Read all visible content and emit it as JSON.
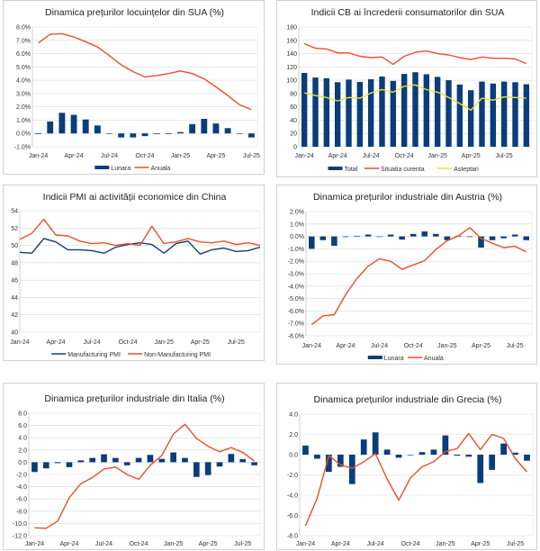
{
  "colors": {
    "bar": "#0a3d7a",
    "red": "#e8502a",
    "navy_line": "#123d6b",
    "yellow": "#e8e040",
    "grid": "#d9d9d9"
  },
  "chart_data": [
    {
      "id": "us-house-prices",
      "type": "bar",
      "title": "Dinamica prețurilor locuințelor din SUA (%)",
      "categories": [
        "Jan-24",
        "Feb-24",
        "Mar-24",
        "Apr-24",
        "May-24",
        "Jun-24",
        "Jul-24",
        "Aug-24",
        "Sep-24",
        "Oct-24",
        "Nov-24",
        "Dec-24",
        "Jan-25",
        "Feb-25",
        "Mar-25",
        "Apr-25",
        "May-25",
        "Jun-25",
        "Jul-25"
      ],
      "x_tick_labels": [
        "Jan-24",
        "Apr-24",
        "Jul-24",
        "Oct-24",
        "Jan-25",
        "Apr-25",
        "Jul-25"
      ],
      "ylim": [
        -1,
        8
      ],
      "y_ticks": [
        -1,
        0,
        1,
        2,
        3,
        4,
        5,
        6,
        7,
        8
      ],
      "y_tick_labels": [
        "-1.0%",
        "0.0%",
        "1.0%",
        "2.0%",
        "3.0%",
        "4.0%",
        "5.0%",
        "6.0%",
        "7.0%",
        "8.0%"
      ],
      "grid": true,
      "legend_position": "bottom",
      "series": [
        {
          "name": "Lunara",
          "kind": "bar",
          "color": "#0a3d7a",
          "values": [
            -0.05,
            0.9,
            1.55,
            1.4,
            1.05,
            0.6,
            0.0,
            -0.3,
            -0.3,
            -0.2,
            -0.05,
            -0.05,
            0.1,
            0.7,
            1.1,
            0.75,
            0.4,
            0.0,
            -0.3
          ]
        },
        {
          "name": "Anuala",
          "kind": "line",
          "color": "#e8502a",
          "values": [
            6.8,
            7.45,
            7.5,
            7.25,
            6.9,
            6.5,
            5.85,
            5.15,
            4.65,
            4.25,
            4.35,
            4.5,
            4.7,
            4.5,
            4.1,
            3.5,
            2.85,
            2.15,
            1.8
          ]
        }
      ]
    },
    {
      "id": "us-cb-confidence",
      "type": "bar",
      "title": "Indicii CB ai încrederii consumatorilor din SUA",
      "categories": [
        "Jan-24",
        "Feb-24",
        "Mar-24",
        "Apr-24",
        "May-24",
        "Jun-24",
        "Jul-24",
        "Aug-24",
        "Sep-24",
        "Oct-24",
        "Nov-24",
        "Dec-24",
        "Jan-25",
        "Feb-25",
        "Mar-25",
        "Apr-25",
        "May-25",
        "Jun-25",
        "Jul-25",
        "Aug-25",
        "Sep-25"
      ],
      "x_tick_labels": [
        "Jan-24",
        "Apr-24",
        "Jul-24",
        "Oct-24",
        "Jan-25",
        "Apr-25",
        "Jul-25"
      ],
      "ylim": [
        0,
        180
      ],
      "y_ticks": [
        0,
        20,
        40,
        60,
        80,
        100,
        120,
        140,
        160,
        180
      ],
      "y_tick_labels": [
        "0",
        "20",
        "40",
        "60",
        "80",
        "100",
        "120",
        "140",
        "160",
        "180"
      ],
      "grid": true,
      "legend_position": "bottom",
      "series": [
        {
          "name": "Total",
          "kind": "bar",
          "color": "#0a3d7a",
          "values": [
            111,
            104,
            103,
            97,
            101,
            97.5,
            101.5,
            105.5,
            99,
            109.5,
            112,
            109,
            105,
            100,
            93.5,
            85,
            98,
            95,
            98,
            97,
            94
          ]
        },
        {
          "name": "Situatia curenta",
          "kind": "line",
          "color": "#e8502a",
          "values": [
            155,
            148,
            147,
            141,
            141,
            136,
            134,
            135,
            124,
            136,
            142,
            144,
            140,
            138,
            134,
            131,
            135,
            133,
            133,
            132,
            125
          ]
        },
        {
          "name": "Asteptari",
          "kind": "line",
          "color": "#e8e040",
          "values": [
            81,
            77,
            74,
            69,
            74,
            73,
            81,
            86,
            82,
            91,
            93,
            86,
            82,
            74,
            65,
            55,
            73,
            70,
            75,
            74,
            73
          ]
        }
      ]
    },
    {
      "id": "china-pmi",
      "type": "line",
      "title": "Indicii PMI ai activității economice din China",
      "categories": [
        "Jan-24",
        "Feb-24",
        "Mar-24",
        "Apr-24",
        "May-24",
        "Jun-24",
        "Jul-24",
        "Aug-24",
        "Sep-24",
        "Oct-24",
        "Nov-24",
        "Dec-24",
        "Jan-25",
        "Feb-25",
        "Mar-25",
        "Apr-25",
        "May-25",
        "Jun-25",
        "Jul-25",
        "Aug-25",
        "Sep-25"
      ],
      "x_tick_labels": [
        "Jan-24",
        "Apr-24",
        "Jul-24",
        "Oct-24",
        "Jan-25",
        "Apr-25",
        "Jul-25"
      ],
      "ylim": [
        40,
        54
      ],
      "y_ticks": [
        40,
        42,
        44,
        46,
        48,
        50,
        52,
        54
      ],
      "y_tick_labels": [
        "40",
        "42",
        "44",
        "46",
        "48",
        "50",
        "52",
        "54"
      ],
      "grid": true,
      "legend_position": "bottom",
      "series": [
        {
          "name": "Manufacturing PMI",
          "kind": "line",
          "color": "#123d6b",
          "values": [
            49.2,
            49.1,
            50.8,
            50.4,
            49.5,
            49.5,
            49.4,
            49.1,
            49.8,
            50.1,
            50.3,
            50.1,
            49.1,
            50.2,
            50.5,
            49.0,
            49.5,
            49.7,
            49.3,
            49.4,
            49.8
          ]
        },
        {
          "name": "Non-Manufacturing PMI",
          "kind": "line",
          "color": "#e8502a",
          "values": [
            50.7,
            51.4,
            53.0,
            51.2,
            51.1,
            50.5,
            50.2,
            50.3,
            50.0,
            50.2,
            50.0,
            52.2,
            50.2,
            50.4,
            50.8,
            50.4,
            50.3,
            50.5,
            50.1,
            50.3,
            50.0
          ]
        }
      ]
    },
    {
      "id": "austria-ppi",
      "type": "bar",
      "title": "Dinamica prețurilor industriale din Austria (%)",
      "categories": [
        "Jan-24",
        "Feb-24",
        "Mar-24",
        "Apr-24",
        "May-24",
        "Jun-24",
        "Jul-24",
        "Aug-24",
        "Sep-24",
        "Oct-24",
        "Nov-24",
        "Dec-24",
        "Jan-25",
        "Feb-25",
        "Mar-25",
        "Apr-25",
        "May-25",
        "Jun-25",
        "Jul-25",
        "Aug-25"
      ],
      "x_tick_labels": [
        "Jan-24",
        "Apr-24",
        "Jul-24",
        "Oct-24",
        "Jan-25",
        "Apr-25",
        "Jul-25"
      ],
      "ylim": [
        -8,
        2
      ],
      "y_ticks": [
        -8,
        -7,
        -6,
        -5,
        -4,
        -3,
        -2,
        -1,
        0,
        1,
        2
      ],
      "y_tick_labels": [
        "-8.0%",
        "-7.0%",
        "-6.0%",
        "-5.0%",
        "-4.0%",
        "-3.0%",
        "-2.0%",
        "-1.0%",
        "0.0%",
        "1.0%",
        "2.0%"
      ],
      "grid": true,
      "legend_position": "bottom",
      "series": [
        {
          "name": "Lunara",
          "kind": "bar",
          "color": "#0a3d7a",
          "values": [
            -1.0,
            -0.3,
            -0.75,
            -0.05,
            0.05,
            0.15,
            0.0,
            0.15,
            -0.25,
            0.2,
            0.4,
            0.2,
            -0.3,
            0.05,
            -0.05,
            -0.9,
            -0.3,
            -0.15,
            0.15,
            -0.3
          ]
        },
        {
          "name": "Anuala",
          "kind": "line",
          "color": "#e8502a",
          "values": [
            -7.1,
            -6.4,
            -6.3,
            -4.7,
            -3.4,
            -2.4,
            -1.8,
            -2.0,
            -2.65,
            -2.3,
            -1.95,
            -1.05,
            -0.35,
            0.05,
            0.7,
            -0.15,
            -0.55,
            -0.9,
            -0.8,
            -1.25
          ]
        }
      ]
    },
    {
      "id": "italy-ppi",
      "type": "bar",
      "title": "Dinamica prețurilor industriale din Italia (%)",
      "categories": [
        "Jan-24",
        "Feb-24",
        "Mar-24",
        "Apr-24",
        "May-24",
        "Jun-24",
        "Jul-24",
        "Aug-24",
        "Sep-24",
        "Oct-24",
        "Nov-24",
        "Dec-24",
        "Jan-25",
        "Feb-25",
        "Mar-25",
        "Apr-25",
        "May-25",
        "Jun-25",
        "Jul-25",
        "Aug-25"
      ],
      "x_tick_labels": [
        "Jan-24",
        "Apr-24",
        "Jul-24",
        "Oct-24",
        "Jan-25",
        "Apr-25",
        "Jul-25"
      ],
      "ylim": [
        -12,
        8
      ],
      "y_ticks": [
        -12,
        -10,
        -8,
        -6,
        -4,
        -2,
        0,
        2,
        4,
        6,
        8
      ],
      "y_tick_labels": [
        "-12.0",
        "-10.0",
        "-8.0",
        "-6.0",
        "-4.0",
        "-2.0",
        "0.0",
        "2.0",
        "4.0",
        "6.0",
        "8.0"
      ],
      "grid": true,
      "legend_position": "bottom",
      "series": [
        {
          "name": "Lunara",
          "kind": "bar",
          "color": "#0a3d7a",
          "values": [
            -1.6,
            -1.0,
            -0.15,
            -0.8,
            0.3,
            0.7,
            1.3,
            0.7,
            -0.5,
            0.7,
            1.2,
            0.55,
            1.6,
            0.7,
            -2.4,
            -2.1,
            -0.7,
            1.35,
            0.5,
            -0.5
          ]
        },
        {
          "name": "Anuala",
          "kind": "line",
          "color": "#e8502a",
          "values": [
            -10.7,
            -10.8,
            -9.6,
            -5.8,
            -3.5,
            -2.5,
            -1.1,
            -0.8,
            -2.0,
            -2.8,
            -0.5,
            1.1,
            4.6,
            6.2,
            3.9,
            2.6,
            1.7,
            2.4,
            1.6,
            0.2
          ]
        }
      ]
    },
    {
      "id": "greece-ppi",
      "type": "bar",
      "title": "Dinamica prețurilor industriale din Grecia (%)",
      "categories": [
        "Jan-24",
        "Feb-24",
        "Mar-24",
        "Apr-24",
        "May-24",
        "Jun-24",
        "Jul-24",
        "Aug-24",
        "Sep-24",
        "Oct-24",
        "Nov-24",
        "Dec-24",
        "Jan-25",
        "Feb-25",
        "Mar-25",
        "Apr-25",
        "May-25",
        "Jun-25",
        "Jul-25",
        "Aug-25"
      ],
      "x_tick_labels": [
        "Jan-24",
        "Apr-24",
        "Jul-24",
        "Oct-24",
        "Jan-25",
        "Apr-25",
        "Jul-25"
      ],
      "ylim": [
        -8,
        4
      ],
      "y_ticks": [
        -8,
        -6,
        -4,
        -2,
        0,
        2,
        4
      ],
      "y_tick_labels": [
        "-8.0",
        "-6.0",
        "-4.0",
        "-2.0",
        "0.0",
        "2.0",
        "4.0"
      ],
      "grid": true,
      "legend_position": "bottom",
      "series": [
        {
          "name": "Lunara",
          "kind": "bar",
          "color": "#0a3d7a",
          "values": [
            0.9,
            -0.4,
            -1.7,
            -1.2,
            -2.9,
            1.5,
            2.2,
            0.5,
            -0.3,
            0.0,
            0.25,
            0.5,
            1.9,
            -0.1,
            -0.2,
            -2.8,
            -1.5,
            1.1,
            0.2,
            -0.6
          ]
        },
        {
          "name": "Anuala",
          "kind": "line",
          "color": "#e8502a",
          "values": [
            -7.0,
            -4.3,
            -0.1,
            -1.0,
            -1.35,
            -0.7,
            0.1,
            -2.4,
            -4.5,
            -2.3,
            -1.2,
            -0.7,
            0.3,
            0.6,
            2.1,
            0.5,
            2.0,
            1.6,
            -0.4,
            -1.7
          ]
        }
      ]
    }
  ]
}
